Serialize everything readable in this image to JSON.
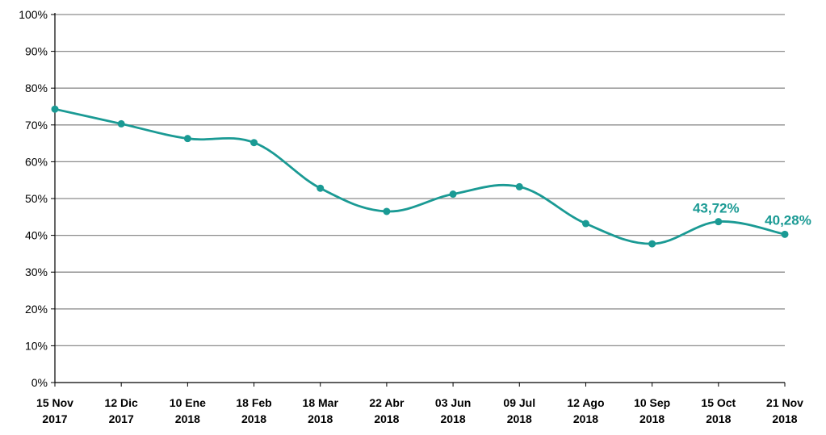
{
  "chart_data": {
    "type": "line",
    "categories": [
      [
        "15 Nov",
        "2017"
      ],
      [
        "12 Dic",
        "2017"
      ],
      [
        "10 Ene",
        "2018"
      ],
      [
        "18 Feb",
        "2018"
      ],
      [
        "18 Mar",
        "2018"
      ],
      [
        "22 Abr",
        "2018"
      ],
      [
        "03 Jun",
        "2018"
      ],
      [
        "09 Jul",
        "2018"
      ],
      [
        "12 Ago",
        "2018"
      ],
      [
        "10 Sep",
        "2018"
      ],
      [
        "15 Oct",
        "2018"
      ],
      [
        "21 Nov",
        "2018"
      ]
    ],
    "series": [
      {
        "values": [
          74.3,
          70.3,
          66.3,
          65.2,
          52.8,
          46.5,
          51.2,
          53.2,
          43.2,
          37.7,
          43.72,
          40.28
        ]
      }
    ],
    "ylim": [
      0,
      100
    ],
    "yticks": [
      "0%",
      "10%",
      "20%",
      "30%",
      "40%",
      "50%",
      "60%",
      "70%",
      "80%",
      "90%",
      "100%"
    ],
    "data_labels": [
      {
        "index": 10,
        "text": "43,72%"
      },
      {
        "index": 11,
        "text": "40,28%"
      }
    ],
    "grid": true,
    "colors": {
      "line": "#1a9a94",
      "grid": "#8c8c8c",
      "axis": "#000000"
    }
  }
}
